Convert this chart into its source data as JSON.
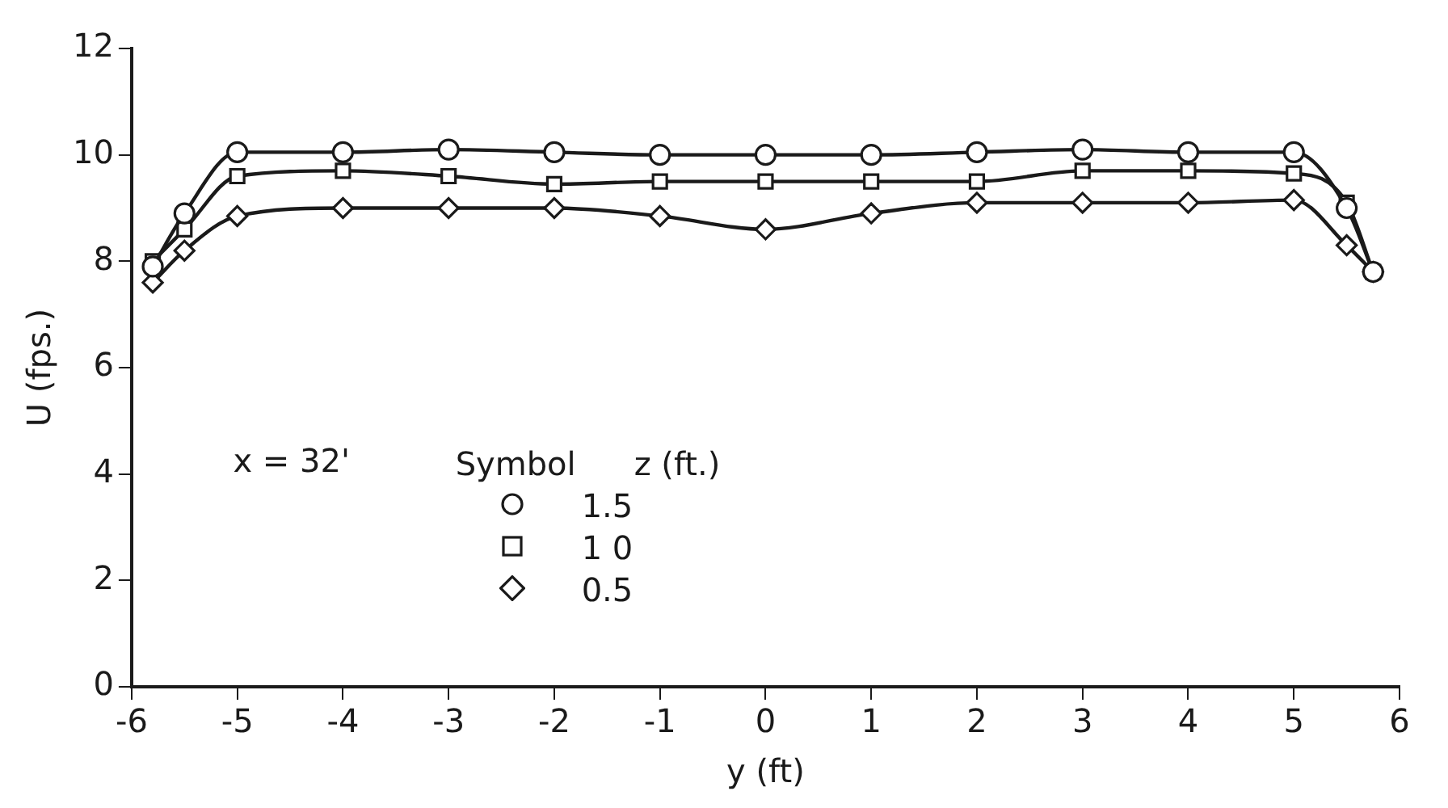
{
  "chart_data": {
    "type": "line",
    "xlabel": "y (ft)",
    "ylabel": "U (fps.)",
    "legend_title": "z (ft.)",
    "annotations": [
      "x = 32'",
      "Symbol"
    ],
    "xlim": [
      -6,
      6
    ],
    "xticks": [
      -6,
      -5,
      -4,
      -3,
      -2,
      -1,
      0,
      1,
      2,
      3,
      4,
      5,
      6
    ],
    "ylim": [
      0,
      12
    ],
    "yticks": [
      0,
      2,
      4,
      6,
      8,
      10,
      12
    ],
    "grid": false,
    "legend": "left",
    "series": [
      {
        "name": "1.5",
        "color": "#1a1a1a",
        "marker": "circle",
        "x": [
          -5.8,
          -5.5,
          -5,
          -4,
          -3,
          -2,
          -1,
          0,
          1,
          2,
          3,
          4,
          5,
          5.5,
          5.75
        ],
        "values": [
          7.9,
          8.9,
          10.05,
          10.05,
          10.1,
          10.05,
          10,
          10,
          10,
          10.05,
          10.1,
          10.05,
          10.05,
          9,
          7.8
        ]
      },
      {
        "name": "1 0",
        "color": "#1a1a1a",
        "marker": "square",
        "x": [
          -5.8,
          -5.5,
          -5,
          -4,
          -3,
          -2,
          -1,
          0,
          1,
          2,
          3,
          4,
          5,
          5.5,
          5.75
        ],
        "values": [
          8,
          8.6,
          9.6,
          9.7,
          9.6,
          9.45,
          9.5,
          9.5,
          9.5,
          9.5,
          9.7,
          9.7,
          9.65,
          9.1,
          7.8
        ]
      },
      {
        "name": "0.5",
        "color": "#1a1a1a",
        "marker": "diamond",
        "x": [
          -5.8,
          -5.5,
          -5,
          -4,
          -3,
          -2,
          -1,
          0,
          1,
          2,
          3,
          4,
          5,
          5.5,
          5.75
        ],
        "values": [
          7.6,
          8.2,
          8.85,
          9,
          9,
          9,
          8.85,
          8.6,
          8.9,
          9.1,
          9.1,
          9.1,
          9.15,
          8.3,
          7.8
        ]
      }
    ]
  }
}
